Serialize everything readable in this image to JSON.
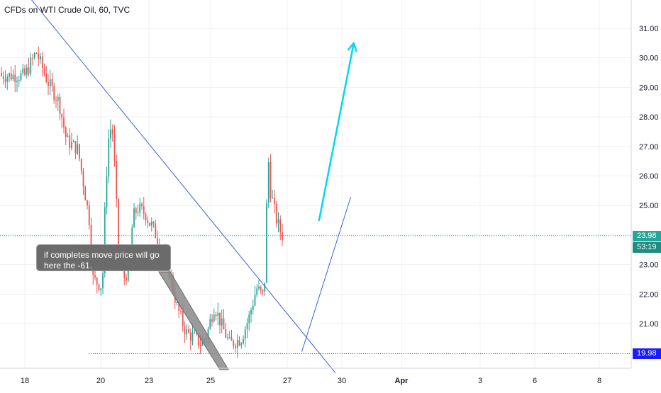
{
  "header": {
    "title": "CFDs on WTI Crude Oil, 60, TVC"
  },
  "annotation": {
    "text": "if completes move price will go here the -61."
  },
  "colors": {
    "up": "#26a69a",
    "down": "#ef5350",
    "trendline": "#3d5fd9",
    "arrow": "#00d8f0",
    "current_price": "#26a69a",
    "support": "#1a1aff",
    "callout_bg": "#6b6b6b",
    "grid": "#e0e3eb"
  },
  "chart_data": {
    "type": "candlestick",
    "title": "CFDs on WTI Crude Oil, 60, TVC",
    "symbol": "WTI Crude Oil",
    "interval": "60",
    "source": "TVC",
    "y_axis": {
      "ticks": [
        "21.00",
        "22.00",
        "23.00",
        "24.00",
        "25.00",
        "26.00",
        "27.00",
        "28.00",
        "29.00",
        "30.00",
        "31.00"
      ],
      "ylim": [
        19.2,
        31.9
      ]
    },
    "x_axis": {
      "ticks": [
        "18",
        "20",
        "23",
        "25",
        "27",
        "30",
        "Apr",
        "3",
        "6",
        "8"
      ]
    },
    "current_price": {
      "value": "23.98",
      "countdown": "53:19"
    },
    "support_level": {
      "value": "19.98"
    },
    "price_path": [
      [
        18.0,
        29.4
      ],
      [
        18.3,
        30.2
      ],
      [
        18.6,
        29.2
      ],
      [
        18.9,
        28.5
      ],
      [
        19.1,
        27.2
      ],
      [
        19.4,
        26.9
      ],
      [
        19.7,
        24.5
      ],
      [
        19.8,
        22.5
      ],
      [
        20.1,
        22.2
      ],
      [
        20.3,
        25.5
      ],
      [
        20.5,
        27.3
      ],
      [
        20.7,
        27.8
      ],
      [
        20.9,
        26.0
      ],
      [
        21.1,
        23.5
      ],
      [
        21.3,
        23.0
      ],
      [
        21.5,
        22.5
      ],
      [
        21.8,
        23.1
      ],
      [
        22.0,
        24.6
      ],
      [
        22.3,
        24.9
      ],
      [
        22.6,
        24.8
      ],
      [
        22.8,
        24.7
      ],
      [
        23.1,
        24.3
      ],
      [
        23.4,
        23.6
      ],
      [
        23.7,
        22.6
      ],
      [
        23.9,
        21.6
      ],
      [
        24.2,
        20.7
      ],
      [
        24.5,
        20.5
      ],
      [
        24.7,
        20.3
      ],
      [
        24.9,
        20.7
      ],
      [
        25.1,
        21.6
      ],
      [
        25.3,
        20.9
      ],
      [
        25.5,
        20.3
      ],
      [
        25.8,
        20.5
      ],
      [
        26.0,
        21.2
      ],
      [
        26.2,
        22.2
      ],
      [
        26.4,
        21.9
      ],
      [
        26.5,
        26.8
      ],
      [
        26.55,
        25.6
      ],
      [
        26.7,
        24.6
      ],
      [
        26.8,
        24.2
      ],
      [
        26.9,
        23.9
      ]
    ],
    "drawings": {
      "downtrend_line": [
        [
          17.9,
          32.4
        ],
        [
          29.65,
          19.33
        ]
      ],
      "uptrend_line": [
        [
          27.8,
          20.05
        ],
        [
          30.15,
          25.29
        ]
      ],
      "projection_arrow": [
        [
          28.75,
          24.5
        ],
        [
          30.2,
          30.5
        ]
      ]
    }
  }
}
